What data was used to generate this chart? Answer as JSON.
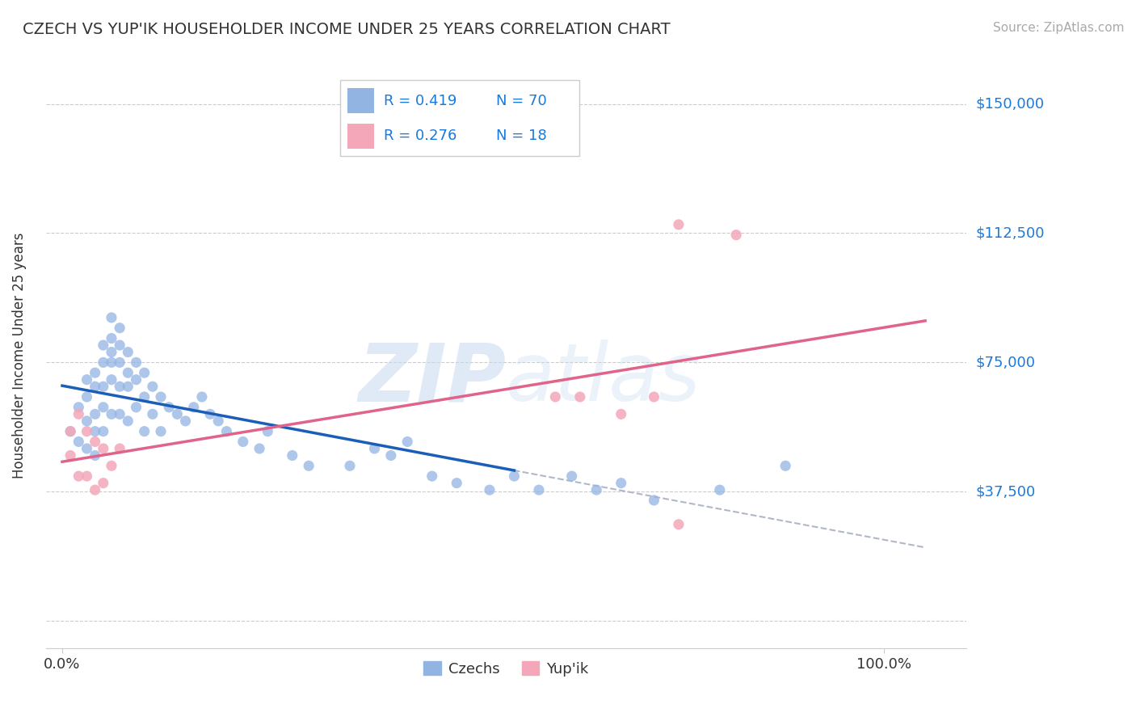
{
  "title": "CZECH VS YUP'IK HOUSEHOLDER INCOME UNDER 25 YEARS CORRELATION CHART",
  "source": "Source: ZipAtlas.com",
  "ylabel": "Householder Income Under 25 years",
  "watermark": "ZIPatlas",
  "czech_color": "#92b4e3",
  "yupik_color": "#f4a7b9",
  "czech_line_color": "#1a5eb8",
  "yupik_line_color": "#e0638a",
  "trend_dashed_color": "#b0b8c8",
  "ytick_vals": [
    0,
    37500,
    75000,
    112500,
    150000
  ],
  "ytick_labels": [
    "",
    "$37,500",
    "$75,000",
    "$112,500",
    "$150,000"
  ],
  "xtick_vals": [
    0.0,
    1.0
  ],
  "xtick_labels": [
    "0.0%",
    "100.0%"
  ],
  "xlim": [
    -0.02,
    1.1
  ],
  "ylim": [
    -8000,
    162000
  ],
  "bg_color": "#ffffff",
  "grid_color": "#cccccc",
  "legend_text_color": "#1a7adb",
  "bottom_legend_color": "#333333",
  "czech_x": [
    0.01,
    0.02,
    0.02,
    0.03,
    0.03,
    0.03,
    0.03,
    0.04,
    0.04,
    0.04,
    0.04,
    0.04,
    0.05,
    0.05,
    0.05,
    0.05,
    0.05,
    0.06,
    0.06,
    0.06,
    0.06,
    0.06,
    0.06,
    0.07,
    0.07,
    0.07,
    0.07,
    0.07,
    0.08,
    0.08,
    0.08,
    0.08,
    0.09,
    0.09,
    0.09,
    0.1,
    0.1,
    0.1,
    0.11,
    0.11,
    0.12,
    0.12,
    0.13,
    0.14,
    0.15,
    0.16,
    0.17,
    0.18,
    0.19,
    0.2,
    0.22,
    0.24,
    0.25,
    0.28,
    0.3,
    0.35,
    0.38,
    0.4,
    0.42,
    0.45,
    0.48,
    0.52,
    0.55,
    0.58,
    0.62,
    0.65,
    0.68,
    0.72,
    0.8,
    0.88
  ],
  "czech_y": [
    55000,
    62000,
    52000,
    70000,
    65000,
    58000,
    50000,
    72000,
    68000,
    60000,
    55000,
    48000,
    80000,
    75000,
    68000,
    62000,
    55000,
    88000,
    82000,
    78000,
    75000,
    70000,
    60000,
    85000,
    80000,
    75000,
    68000,
    60000,
    78000,
    72000,
    68000,
    58000,
    75000,
    70000,
    62000,
    72000,
    65000,
    55000,
    68000,
    60000,
    65000,
    55000,
    62000,
    60000,
    58000,
    62000,
    65000,
    60000,
    58000,
    55000,
    52000,
    50000,
    55000,
    48000,
    45000,
    45000,
    50000,
    48000,
    52000,
    42000,
    40000,
    38000,
    42000,
    38000,
    42000,
    38000,
    40000,
    35000,
    38000,
    45000
  ],
  "yupik_x": [
    0.01,
    0.01,
    0.02,
    0.02,
    0.03,
    0.03,
    0.04,
    0.04,
    0.05,
    0.05,
    0.06,
    0.07,
    0.6,
    0.63,
    0.68,
    0.72,
    0.75,
    0.82
  ],
  "yupik_y": [
    55000,
    48000,
    60000,
    42000,
    55000,
    42000,
    52000,
    38000,
    50000,
    40000,
    45000,
    50000,
    65000,
    65000,
    60000,
    65000,
    115000,
    112000
  ],
  "yupik_low_x": [
    0.75
  ],
  "yupik_low_y": [
    28000
  ]
}
